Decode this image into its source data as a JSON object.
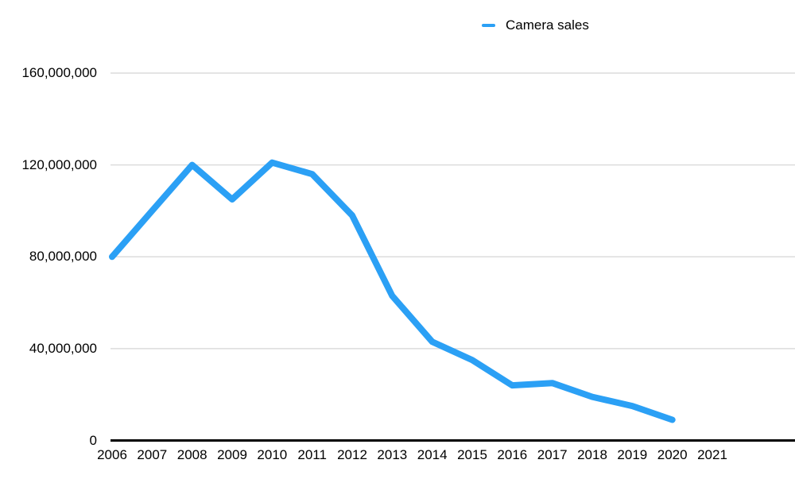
{
  "legend": {
    "label": "Camera sales"
  },
  "chart_data": {
    "type": "line",
    "title": "",
    "xlabel": "",
    "ylabel": "",
    "categories": [
      "2006",
      "2007",
      "2008",
      "2009",
      "2010",
      "2011",
      "2012",
      "2013",
      "2014",
      "2015",
      "2016",
      "2017",
      "2018",
      "2019",
      "2020",
      "2021"
    ],
    "series": [
      {
        "name": "Camera sales",
        "color": "#2ba0f5",
        "values": [
          80000000,
          100000000,
          120000000,
          105000000,
          121000000,
          116000000,
          98000000,
          63000000,
          43000000,
          35000000,
          24000000,
          25000000,
          19000000,
          15000000,
          9000000,
          null
        ]
      }
    ],
    "ylim": [
      0,
      160000000
    ],
    "ytick_interval": 40000000,
    "yticks": [
      {
        "value": 0,
        "label": "0"
      },
      {
        "value": 40000000,
        "label": "40,000,000"
      },
      {
        "value": 80000000,
        "label": "80,000,000"
      },
      {
        "value": 120000000,
        "label": "120,000,000"
      },
      {
        "value": 160000000,
        "label": "160,000,000"
      }
    ],
    "grid": "horizontal",
    "legend_position": "top-center",
    "colors": {
      "line": "#2ba0f5",
      "gridline": "#dcdcdc",
      "axis": "#000000",
      "text": "#000000",
      "background": "#ffffff"
    }
  }
}
